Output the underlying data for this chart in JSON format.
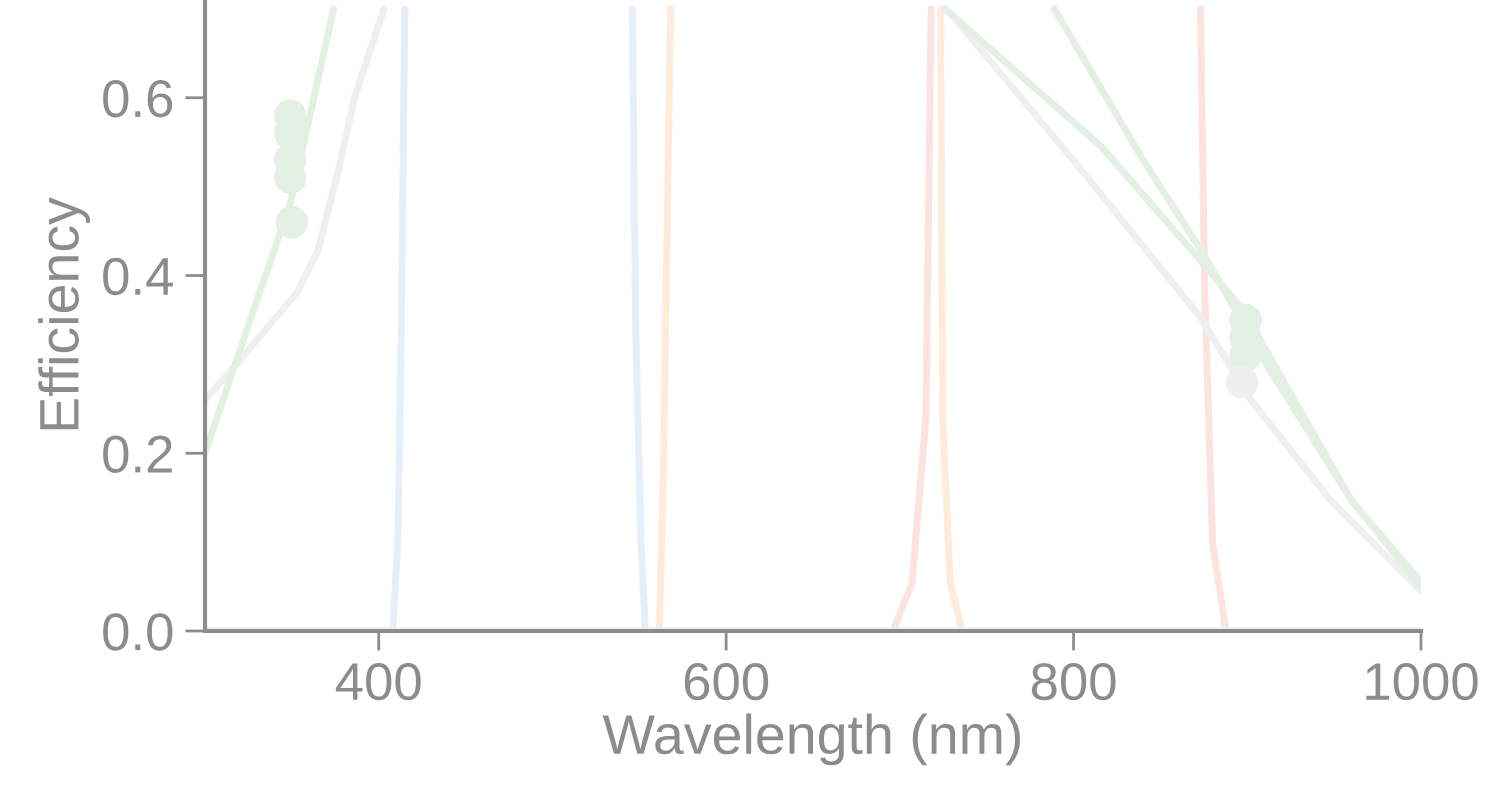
{
  "chart_data": {
    "type": "line",
    "xlabel": "Wavelength (nm)",
    "ylabel": "Efficiency",
    "xlim": [
      300,
      1000
    ],
    "ylim": [
      0,
      0.71
    ],
    "xticks": [
      400,
      600,
      800,
      1000
    ],
    "yticks": [
      {
        "value": 0,
        "label": "0.0"
      },
      {
        "value": 0.2,
        "label": "0.2"
      },
      {
        "value": 0.4,
        "label": "0.4"
      },
      {
        "value": 0.6,
        "label": "0.6"
      }
    ],
    "grid": false,
    "legend": false,
    "line_style": "solid",
    "series": [
      {
        "color": "#fbe3e1",
        "x": [
          300,
          696,
          707,
          715,
          718,
          800,
          873,
          875.6,
          880,
          887.7,
          1000
        ],
        "values": [
          0,
          0,
          0.054,
          0.24,
          0.7,
          null,
          0.7,
          0.374,
          0.1,
          0,
          0
        ]
      },
      {
        "color": "#fdebdb",
        "x": [
          300,
          561.6,
          564,
          568,
          650,
          723.5,
          724.6,
          729,
          736,
          1000
        ],
        "values": [
          0,
          0,
          0.194,
          0.7,
          null,
          0.7,
          0.24,
          0.054,
          0,
          0
        ]
      },
      {
        "color": "#e6eef8",
        "x": [
          300,
          408,
          411,
          413,
          415,
          480,
          546,
          548,
          551,
          553.5,
          1000
        ],
        "values": [
          0,
          0,
          0.1,
          0.335,
          0.7,
          null,
          0.7,
          0.335,
          0.1,
          0,
          0
        ]
      },
      {
        "color": "#efefef",
        "x": [
          300,
          321,
          353,
          365,
          377,
          386,
          403,
          560,
          727,
          804,
          873,
          902,
          948,
          1000
        ],
        "values": [
          0.26,
          0.307,
          0.381,
          0.428,
          0.52,
          0.6,
          0.7,
          null,
          0.7,
          0.52,
          0.353,
          0.26,
          0.147,
          0.045
        ]
      },
      {
        "color": "#e3f0e3",
        "x": [
          789,
          840,
          876,
          912,
          960,
          1000
        ],
        "values": [
          0.7,
          0.53,
          0.42,
          0.297,
          0.147,
          0.055
        ]
      },
      {
        "color": "#e3f0e3",
        "x": [
          300,
          326,
          349,
          374,
          550,
          726,
          816,
          897,
          960,
          1000
        ],
        "values": [
          0.2,
          0.35,
          0.48,
          0.7,
          null,
          0.7,
          0.545,
          0.363,
          0.147,
          0.05
        ]
      },
      {
        "type": "scatter",
        "marker": "circle",
        "color": "#e3f0e3",
        "x": [
          349,
          349,
          349,
          349,
          350,
          899,
          899,
          899
        ],
        "values": [
          0.58,
          0.56,
          0.53,
          0.51,
          0.46,
          0.35,
          0.33,
          0.31
        ]
      },
      {
        "type": "scatter",
        "marker": "circle",
        "color": "#efefef",
        "x": [
          897
        ],
        "values": [
          0.28
        ]
      }
    ]
  }
}
